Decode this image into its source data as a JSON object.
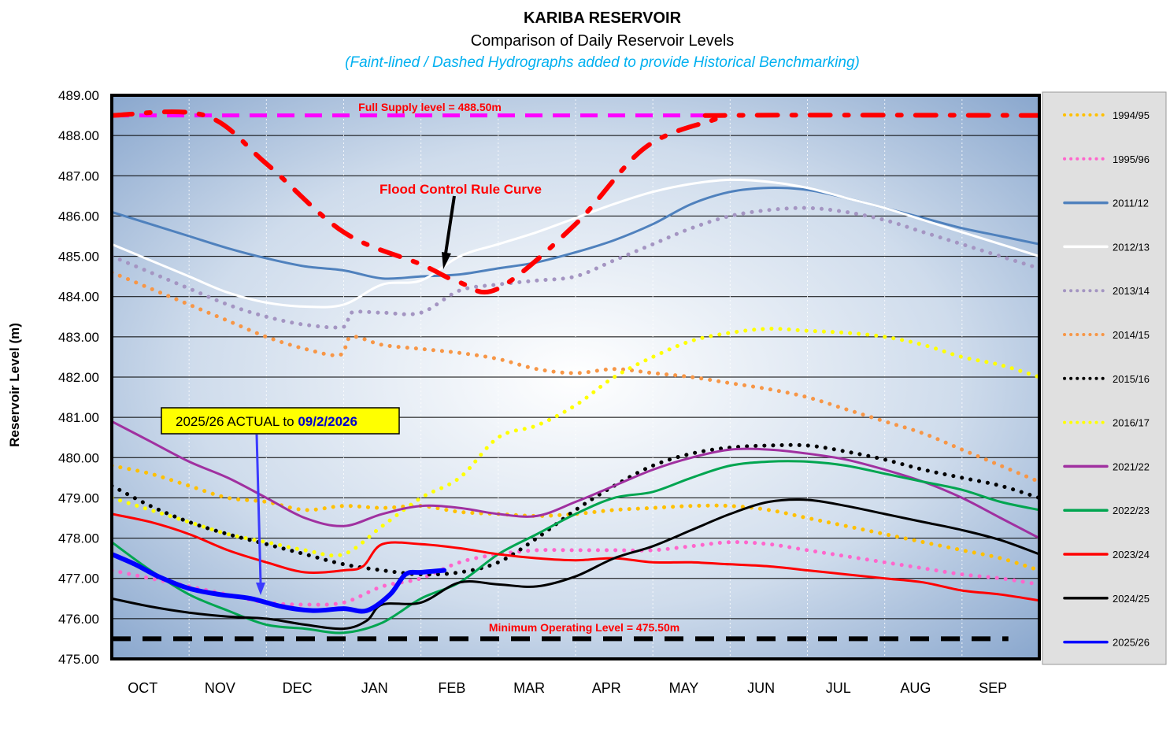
{
  "chart_data": {
    "type": "line",
    "title": "KARIBA  RESERVOIR",
    "subtitle": "Comparison  of  Daily  Reservoir  Levels",
    "subtitle2": "(Faint-lined / Dashed Hydrographs added to provide Historical Benchmarking)",
    "ylabel": "Reservoir Level (m)",
    "ylim": [
      475,
      489
    ],
    "y_ticks": [
      "475.00",
      "476.00",
      "477.00",
      "478.00",
      "479.00",
      "480.00",
      "481.00",
      "482.00",
      "483.00",
      "484.00",
      "485.00",
      "486.00",
      "487.00",
      "488.00",
      "489.00"
    ],
    "x_ticks": [
      "OCT",
      "NOV",
      "DEC",
      "JAN",
      "FEB",
      "MAR",
      "APR",
      "MAY",
      "JUN",
      "JUL",
      "AUG",
      "SEP"
    ],
    "xlim": [
      0,
      12
    ],
    "grid": true,
    "legend_position": "right",
    "annotations": {
      "full_supply": "Full  Supply  level  = 488.50m",
      "flood_control": "Flood Control Rule Curve",
      "min_operating": "Minimum  Operating Level = 475.50m",
      "actual_prefix": "2025/26 ACTUAL to ",
      "actual_date": "09/2/2026"
    },
    "reference_lines": [
      {
        "name": "Full Supply level",
        "value": 488.5,
        "color": "#ff00ff"
      },
      {
        "name": "Minimum Operating Level",
        "value": 475.5,
        "color": "#000000"
      }
    ],
    "rule_curve": {
      "name": "Flood Control Rule Curve",
      "color": "#ff0000",
      "x": [
        0,
        1.2,
        2.0,
        3.0,
        4.0,
        4.5,
        5.0,
        6.0,
        6.9,
        7.8,
        8.0,
        12.0
      ],
      "values": [
        488.5,
        488.5,
        487.3,
        485.6,
        484.8,
        484.35,
        484.2,
        485.8,
        487.7,
        488.4,
        488.5,
        488.5
      ]
    },
    "series": [
      {
        "name": "1994/95",
        "color": "#ffc000",
        "style": "dotted",
        "x": [
          0,
          0.5,
          1,
          1.5,
          2,
          2.5,
          3,
          3.5,
          4,
          4.5,
          5,
          5.5,
          6,
          6.5,
          7,
          7.5,
          8,
          8.5,
          9,
          9.5,
          10,
          10.5,
          11,
          11.5,
          12
        ],
        "values": [
          479.8,
          479.6,
          479.3,
          479.0,
          478.9,
          478.7,
          478.8,
          478.75,
          478.8,
          478.65,
          478.6,
          478.55,
          478.6,
          478.7,
          478.75,
          478.8,
          478.8,
          478.7,
          478.5,
          478.3,
          478.1,
          477.9,
          477.7,
          477.5,
          477.2
        ]
      },
      {
        "name": "1995/96",
        "color": "#ff66cc",
        "style": "dotted",
        "x": [
          0,
          0.5,
          1,
          1.5,
          2,
          2.5,
          3,
          3.5,
          4,
          4.5,
          5,
          5.5,
          6,
          6.5,
          7,
          7.5,
          8,
          8.5,
          9,
          9.5,
          10,
          10.5,
          11,
          11.5,
          12
        ],
        "values": [
          477.2,
          477.0,
          476.8,
          476.6,
          476.4,
          476.35,
          476.4,
          476.8,
          477.0,
          477.4,
          477.6,
          477.7,
          477.7,
          477.7,
          477.7,
          477.8,
          477.9,
          477.85,
          477.7,
          477.55,
          477.4,
          477.25,
          477.1,
          477.0,
          476.85
        ]
      },
      {
        "name": "2011/12",
        "color": "#4f81bd",
        "style": "solid",
        "x": [
          0,
          0.5,
          1,
          1.5,
          2,
          2.5,
          3,
          3.5,
          4,
          4.5,
          5,
          5.5,
          6,
          6.5,
          7,
          7.5,
          8,
          8.5,
          9,
          9.5,
          10,
          10.5,
          11,
          11.5,
          12
        ],
        "values": [
          486.1,
          485.8,
          485.5,
          485.2,
          484.95,
          484.75,
          484.65,
          484.45,
          484.5,
          484.55,
          484.7,
          484.85,
          485.1,
          485.4,
          485.8,
          486.3,
          486.6,
          486.7,
          486.65,
          486.45,
          486.2,
          485.95,
          485.7,
          485.5,
          485.3
        ]
      },
      {
        "name": "2012/13",
        "color": "#ffffff",
        "style": "solid",
        "x": [
          0,
          0.5,
          1,
          1.5,
          2,
          2.5,
          3,
          3.5,
          4,
          4.5,
          5,
          5.5,
          6,
          6.5,
          7,
          7.5,
          8,
          8.5,
          9,
          9.5,
          10,
          10.5,
          11,
          11.5,
          12
        ],
        "values": [
          485.3,
          484.9,
          484.5,
          484.1,
          483.85,
          483.75,
          483.8,
          484.3,
          484.4,
          485.0,
          485.3,
          485.6,
          485.95,
          486.3,
          486.6,
          486.8,
          486.9,
          486.85,
          486.7,
          486.45,
          486.2,
          485.9,
          485.6,
          485.3,
          485.0
        ]
      },
      {
        "name": "2013/14",
        "color": "#a495c2",
        "style": "dotted",
        "x": [
          0,
          0.5,
          1,
          1.5,
          2,
          2.5,
          3,
          3.1,
          3.5,
          4,
          4.5,
          5,
          5.5,
          6,
          6.5,
          7,
          7.5,
          8,
          8.5,
          9,
          9.5,
          10,
          10.5,
          11,
          11.5,
          12
        ],
        "values": [
          485.0,
          484.6,
          484.2,
          483.8,
          483.5,
          483.3,
          483.25,
          483.6,
          483.6,
          483.6,
          484.15,
          484.3,
          484.4,
          484.5,
          484.9,
          485.3,
          485.7,
          486.0,
          486.15,
          486.2,
          486.1,
          485.9,
          485.6,
          485.3,
          485.0,
          484.7
        ]
      },
      {
        "name": "2014/15",
        "color": "#f79646",
        "style": "dotted",
        "x": [
          0,
          0.5,
          1,
          1.5,
          2,
          2.5,
          2.95,
          3.1,
          3.5,
          4,
          4.5,
          5,
          5.5,
          6,
          6.5,
          7,
          7.5,
          8,
          8.5,
          9,
          9.5,
          10,
          10.5,
          11,
          11.5,
          12
        ],
        "values": [
          484.6,
          484.2,
          483.8,
          483.4,
          483.0,
          482.7,
          482.55,
          483.0,
          482.8,
          482.7,
          482.6,
          482.45,
          482.2,
          482.1,
          482.2,
          482.1,
          482.0,
          481.85,
          481.7,
          481.5,
          481.2,
          480.9,
          480.6,
          480.2,
          479.8,
          479.4
        ]
      },
      {
        "name": "2015/16",
        "color": "#000000",
        "style": "dotted",
        "x": [
          0,
          0.5,
          1,
          1.5,
          2,
          2.5,
          3,
          3.5,
          4,
          4.5,
          5,
          5.5,
          6,
          6.5,
          7,
          7.5,
          8,
          8.5,
          9,
          9.5,
          10,
          10.5,
          11,
          11.5,
          12
        ],
        "values": [
          479.3,
          478.8,
          478.4,
          478.1,
          477.85,
          477.6,
          477.35,
          477.2,
          477.1,
          477.15,
          477.4,
          478.0,
          478.7,
          479.3,
          479.8,
          480.1,
          480.25,
          480.3,
          480.3,
          480.15,
          479.95,
          479.7,
          479.5,
          479.3,
          479.0
        ]
      },
      {
        "name": "2016/17",
        "color": "#ffff00",
        "style": "dotted",
        "x": [
          0,
          0.5,
          1,
          1.5,
          2,
          2.5,
          3,
          3.5,
          4,
          4.5,
          5,
          5.5,
          6,
          6.5,
          7,
          7.5,
          8,
          8.5,
          9,
          9.5,
          10,
          10.5,
          11,
          11.5,
          12
        ],
        "values": [
          479.0,
          478.7,
          478.4,
          478.1,
          477.9,
          477.7,
          477.6,
          478.3,
          479.0,
          479.5,
          480.5,
          480.8,
          481.3,
          482.0,
          482.5,
          482.9,
          483.1,
          483.2,
          483.15,
          483.1,
          483.0,
          482.8,
          482.5,
          482.3,
          482.0
        ]
      },
      {
        "name": "2021/22",
        "color": "#a030a0",
        "style": "solid",
        "x": [
          0,
          0.5,
          1,
          1.5,
          2,
          2.5,
          3,
          3.5,
          4,
          4.5,
          5,
          5.5,
          6,
          6.5,
          7,
          7.5,
          8,
          8.5,
          9,
          9.5,
          10,
          10.5,
          11,
          11.5,
          12
        ],
        "values": [
          480.9,
          480.4,
          479.9,
          479.5,
          479.0,
          478.5,
          478.3,
          478.6,
          478.8,
          478.75,
          478.6,
          478.55,
          478.9,
          479.3,
          479.7,
          480.0,
          480.2,
          480.2,
          480.1,
          479.95,
          479.7,
          479.4,
          479.0,
          478.5,
          478.0
        ]
      },
      {
        "name": "2022/23",
        "color": "#00a550",
        "style": "solid",
        "x": [
          0,
          0.5,
          1,
          1.5,
          2,
          2.5,
          3,
          3.5,
          4,
          4.5,
          5,
          5.5,
          6,
          6.5,
          7,
          7.5,
          8,
          8.5,
          9,
          9.5,
          10,
          10.5,
          11,
          11.5,
          12
        ],
        "values": [
          477.9,
          477.2,
          476.6,
          476.2,
          475.85,
          475.75,
          475.65,
          475.9,
          476.5,
          476.9,
          477.6,
          478.1,
          478.6,
          479.0,
          479.15,
          479.5,
          479.8,
          479.9,
          479.9,
          479.8,
          479.6,
          479.4,
          479.2,
          478.9,
          478.7
        ]
      },
      {
        "name": "2023/24",
        "color": "#ff0000",
        "style": "solid",
        "x": [
          0,
          0.5,
          1,
          1.5,
          2,
          2.5,
          3,
          3.25,
          3.5,
          4,
          4.5,
          5,
          5.5,
          6,
          6.5,
          7,
          7.5,
          8,
          8.5,
          9,
          9.5,
          10,
          10.5,
          11,
          11.5,
          12
        ],
        "values": [
          478.6,
          478.4,
          478.1,
          477.7,
          477.4,
          477.15,
          477.2,
          477.3,
          477.85,
          477.85,
          477.75,
          477.6,
          477.5,
          477.45,
          477.5,
          477.4,
          477.4,
          477.35,
          477.3,
          477.2,
          477.1,
          477.0,
          476.9,
          476.7,
          476.6,
          476.45
        ]
      },
      {
        "name": "2024/25",
        "color": "#000000",
        "style": "solid",
        "x": [
          0,
          0.5,
          1,
          1.5,
          2,
          2.5,
          3,
          3.3,
          3.5,
          4,
          4.5,
          5,
          5.5,
          6,
          6.5,
          7,
          7.5,
          8,
          8.5,
          9,
          9.5,
          10,
          10.5,
          11,
          11.5,
          12
        ],
        "values": [
          476.5,
          476.3,
          476.15,
          476.05,
          476.0,
          475.85,
          475.75,
          475.95,
          476.35,
          476.4,
          476.9,
          476.85,
          476.8,
          477.05,
          477.5,
          477.8,
          478.2,
          478.6,
          478.9,
          478.95,
          478.8,
          478.6,
          478.4,
          478.2,
          477.95,
          477.6
        ]
      },
      {
        "name": "2025/26",
        "color": "#0000ff",
        "style": "solid",
        "bold": true,
        "x": [
          0,
          0.3,
          0.6,
          1.0,
          1.4,
          1.8,
          2.2,
          2.6,
          3.0,
          3.3,
          3.6,
          3.8,
          4.0,
          4.3
        ],
        "values": [
          477.6,
          477.35,
          477.05,
          476.75,
          476.6,
          476.5,
          476.3,
          476.2,
          476.25,
          476.2,
          476.6,
          477.1,
          477.15,
          477.2
        ]
      }
    ]
  }
}
